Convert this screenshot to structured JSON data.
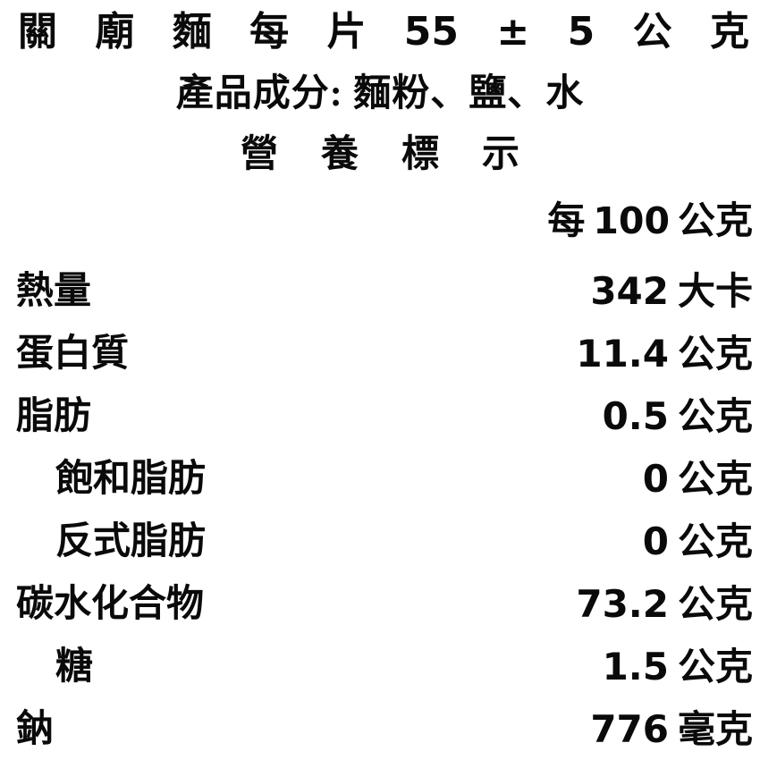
{
  "colors": {
    "background": "#ffffff",
    "text": "#0a0a0a"
  },
  "title": {
    "text": "關廟麵每片 55 ± 5 公克",
    "tokens": [
      "關",
      "廟",
      "麵",
      "每",
      "片",
      "55",
      "±",
      "5",
      "公",
      "克"
    ]
  },
  "ingredients": {
    "text": "產品成分: 麵粉、鹽、水"
  },
  "nutrition": {
    "heading": "營養標示",
    "heading_chars": [
      "營",
      "養",
      "標",
      "示"
    ],
    "per": {
      "prefix": "每",
      "amount": "100",
      "unit": "公克"
    },
    "rows": [
      {
        "label": "熱量",
        "value": "342",
        "unit": "大卡"
      },
      {
        "label": "蛋白質",
        "value": "11.4",
        "unit": "公克"
      },
      {
        "label": "脂肪",
        "value": "0.5",
        "unit": "公克"
      },
      {
        "label": "飽和脂肪",
        "value": "0",
        "unit": "公克"
      },
      {
        "label": "反式脂肪",
        "value": "0",
        "unit": "公克"
      },
      {
        "label": "碳水化合物",
        "value": "73.2",
        "unit": "公克"
      },
      {
        "label": "糖",
        "value": "1.5",
        "unit": "公克"
      },
      {
        "label": "鈉",
        "value": "776",
        "unit": "毫克"
      }
    ]
  }
}
